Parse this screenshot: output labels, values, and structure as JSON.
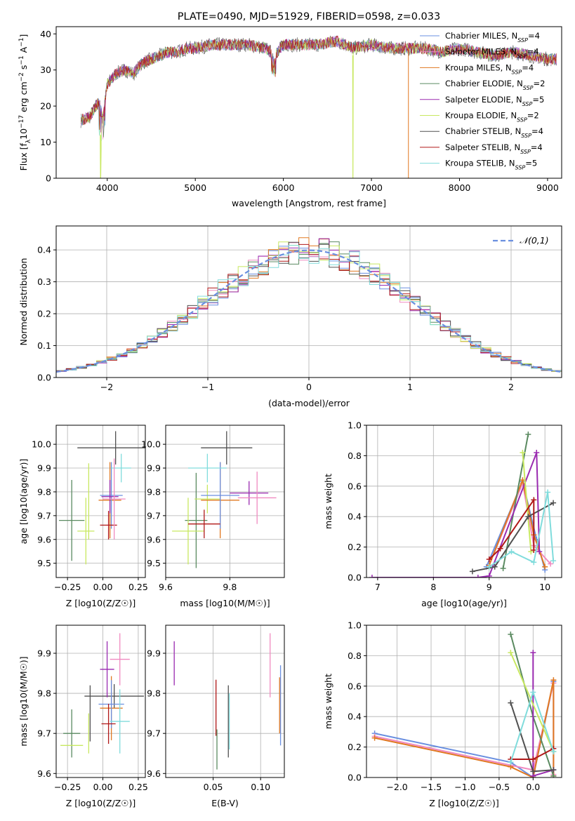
{
  "chart_data": [
    {
      "id": "spectrum",
      "type": "line",
      "title": "PLATE=0490, MJD=51929, FIBERID=0598, z=0.033",
      "xlabel": "wavelength [Angstrom, rest frame]",
      "ylabel": "Flux [f_λ 10^-17 erg cm^-2 s^-1 A^-1]",
      "xlim": [
        3420,
        9160
      ],
      "ylim": [
        0,
        42
      ],
      "xticks": [
        4000,
        5000,
        6000,
        7000,
        8000,
        9000
      ],
      "yticks": [
        0,
        10,
        20,
        30,
        40
      ],
      "grid": false,
      "legend_position": "top-right",
      "legend": [
        {
          "label": "Chabrier MILES, N_SSP=4",
          "color": "#6a8fe0"
        },
        {
          "label": "Salpeter MILES, N_SSP=4",
          "color": "#f08ac0"
        },
        {
          "label": "Kroupa MILES, N_SSP=4",
          "color": "#e07820"
        },
        {
          "label": "Chabrier ELODIE, N_SSP=2",
          "color": "#5a8a60"
        },
        {
          "label": "Salpeter ELODIE, N_SSP=5",
          "color": "#9a2ab0"
        },
        {
          "label": "Kroupa ELODIE, N_SSP=2",
          "color": "#c8e860"
        },
        {
          "label": "Chabrier STELIB, N_SSP=4",
          "color": "#505050"
        },
        {
          "label": "Salpeter STELIB, N_SSP=4",
          "color": "#b01818"
        },
        {
          "label": "Kroupa STELIB, N_SSP=5",
          "color": "#80dcdc"
        }
      ],
      "x": [
        3700,
        3800,
        3900,
        3950,
        4000,
        4100,
        4200,
        4300,
        4400,
        4500,
        4600,
        4700,
        4800,
        4900,
        5000,
        5200,
        5400,
        5600,
        5800,
        5900,
        6000,
        6200,
        6400,
        6600,
        6800,
        7000,
        7200,
        7400,
        7600,
        7800,
        8000,
        8200,
        8400,
        8600,
        8800,
        9000,
        9100
      ],
      "y": [
        16,
        17,
        21,
        17,
        26,
        29,
        30,
        29,
        32,
        33,
        34,
        35,
        35,
        36,
        36,
        37,
        37,
        37,
        36,
        34,
        37,
        37,
        37,
        38,
        36,
        37,
        36,
        36,
        36,
        35,
        36,
        35,
        34,
        35,
        34,
        33,
        33
      ],
      "dips": [
        {
          "x": 3925,
          "y": 0,
          "note": "Kroupa ELODIE"
        },
        {
          "x": 6790,
          "y": 0,
          "note": "Kroupa ELODIE"
        },
        {
          "x": 7420,
          "y": 0,
          "note": "Kroupa MILES"
        }
      ]
    },
    {
      "id": "residuals",
      "type": "step",
      "xlabel": "(data-model)/error",
      "ylabel": "Normed distribution",
      "xlim": [
        -2.5,
        2.5
      ],
      "ylim": [
        0,
        0.475
      ],
      "xticks": [
        -2,
        -1,
        0,
        1,
        2
      ],
      "yticks": [
        0.0,
        0.1,
        0.2,
        0.3,
        0.4
      ],
      "grid": true,
      "legend_position": "top-right",
      "legend": [
        {
          "label": "𝒩(0,1)",
          "color": "#6a8fe0",
          "style": "dashed"
        }
      ],
      "bin_width": 0.1
    },
    {
      "id": "age-vs-Z",
      "type": "errorbar",
      "xlabel": "Z [log10(Z/Z☉)]",
      "ylabel": "age [log10(age/yr)]",
      "xlim": [
        -0.33,
        0.3
      ],
      "ylim": [
        9.44,
        10.08
      ],
      "xticks": [
        -0.25,
        0.0,
        0.25
      ],
      "yticks": [
        9.5,
        9.6,
        9.7,
        9.8,
        9.9,
        10.0
      ],
      "grid": true,
      "points": [
        {
          "x": -0.1,
          "xerr": 0.0,
          "y": 9.76,
          "yerr": 0.16,
          "color": "#c8e860"
        },
        {
          "x": -0.22,
          "xerr": 0.09,
          "y": 9.68,
          "yerr": 0.17,
          "color": "#5a8a60"
        },
        {
          "x": -0.12,
          "xerr": 0.06,
          "y": 9.635,
          "yerr": 0.14,
          "color": "#c8e860"
        },
        {
          "x": 0.09,
          "xerr": 0.27,
          "y": 9.985,
          "yerr": 0.07,
          "color": "#505050"
        },
        {
          "x": 0.05,
          "xerr": 0.08,
          "y": 9.765,
          "yerr": 0.16,
          "color": "#e07820"
        },
        {
          "x": 0.06,
          "xerr": 0.08,
          "y": 9.785,
          "yerr": 0.14,
          "color": "#6a8fe0"
        },
        {
          "x": 0.05,
          "xerr": 0.06,
          "y": 9.78,
          "yerr": 0.07,
          "color": "#9a2ab0"
        },
        {
          "x": 0.04,
          "xerr": 0.06,
          "y": 9.66,
          "yerr": 0.06,
          "color": "#b01818"
        },
        {
          "x": 0.13,
          "xerr": 0.07,
          "y": 9.9,
          "yerr": 0.06,
          "color": "#80dcdc"
        },
        {
          "x": 0.08,
          "xerr": 0.08,
          "y": 9.77,
          "yerr": 0.17,
          "color": "#f08ac0"
        }
      ]
    },
    {
      "id": "age-vs-mass",
      "type": "errorbar",
      "xlabel": "mass [log10(M/M☉)]",
      "ylabel": "",
      "xlim": [
        9.6,
        9.97
      ],
      "ylim": [
        9.44,
        10.08
      ],
      "xticks": [
        9.6,
        9.8
      ],
      "yticks": [
        9.5,
        9.6,
        9.7,
        9.8,
        9.9,
        10.0
      ],
      "grid": true,
      "points": [
        {
          "x": 9.695,
          "xerr": 0.035,
          "y": 9.68,
          "yerr": 0.2,
          "color": "#5a8a60"
        },
        {
          "x": 9.67,
          "xerr": 0.05,
          "y": 9.635,
          "yerr": 0.14,
          "color": "#c8e860"
        },
        {
          "x": 9.73,
          "xerr": 0.04,
          "y": 9.77,
          "yerr": 0.06,
          "color": "#c8e860"
        },
        {
          "x": 9.79,
          "xerr": 0.08,
          "y": 9.985,
          "yerr": 0.07,
          "color": "#505050"
        },
        {
          "x": 9.77,
          "xerr": 0.06,
          "y": 9.765,
          "yerr": 0.16,
          "color": "#e07820"
        },
        {
          "x": 9.77,
          "xerr": 0.06,
          "y": 9.785,
          "yerr": 0.14,
          "color": "#6a8fe0"
        },
        {
          "x": 9.86,
          "xerr": 0.06,
          "y": 9.795,
          "yerr": 0.05,
          "color": "#9a2ab0"
        },
        {
          "x": 9.72,
          "xerr": 0.05,
          "y": 9.665,
          "yerr": 0.06,
          "color": "#b01818"
        },
        {
          "x": 9.73,
          "xerr": 0.06,
          "y": 9.9,
          "yerr": 0.06,
          "color": "#80dcdc"
        },
        {
          "x": 9.885,
          "xerr": 0.06,
          "y": 9.775,
          "yerr": 0.11,
          "color": "#f08ac0"
        }
      ]
    },
    {
      "id": "massweight-vs-age",
      "type": "line",
      "xlabel": "age [log10(age/yr)]",
      "ylabel": "mass weight",
      "xlim": [
        6.8,
        10.3
      ],
      "ylim": [
        0,
        1
      ],
      "xticks": [
        7,
        8,
        9,
        10
      ],
      "yticks": [
        0.0,
        0.2,
        0.4,
        0.6,
        0.8,
        1.0
      ],
      "grid": true,
      "series": [
        {
          "color": "#6a8fe0",
          "x": [
            8.95,
            9.6,
            9.85,
            10.0
          ],
          "y": [
            0.07,
            0.63,
            0.25,
            0.05
          ]
        },
        {
          "color": "#f08ac0",
          "x": [
            9.0,
            9.6,
            9.8,
            10.1
          ],
          "y": [
            0.08,
            0.62,
            0.21,
            0.09
          ]
        },
        {
          "color": "#e07820",
          "x": [
            9.0,
            9.6,
            9.8,
            10.0
          ],
          "y": [
            0.08,
            0.64,
            0.28,
            0.07
          ]
        },
        {
          "color": "#5a8a60",
          "x": [
            9.25,
            9.7
          ],
          "y": [
            0.06,
            0.94
          ]
        },
        {
          "color": "#9a2ab0",
          "x": [
            6.9,
            8.8,
            9.0,
            9.85,
            9.9
          ],
          "y": [
            0.0,
            0.0,
            0.01,
            0.82,
            0.17
          ]
        },
        {
          "color": "#c8e860",
          "x": [
            9.6,
            9.75
          ],
          "y": [
            0.82,
            0.17
          ]
        },
        {
          "color": "#505050",
          "x": [
            8.7,
            9.1,
            9.7,
            10.15
          ],
          "y": [
            0.04,
            0.07,
            0.4,
            0.49
          ]
        },
        {
          "color": "#b01818",
          "x": [
            9.0,
            9.2,
            9.8,
            9.8
          ],
          "y": [
            0.12,
            0.19,
            0.51,
            0.18
          ]
        },
        {
          "color": "#80dcdc",
          "x": [
            9.0,
            9.4,
            9.8,
            10.05,
            10.15
          ],
          "y": [
            0.07,
            0.17,
            0.1,
            0.56,
            0.11
          ]
        }
      ]
    },
    {
      "id": "mass-vs-Z",
      "type": "errorbar",
      "xlabel": "Z [log10(Z/Z☉)]",
      "ylabel": "mass [log10(M/M☉)]",
      "xlim": [
        -0.33,
        0.3
      ],
      "ylim": [
        9.59,
        9.97
      ],
      "xticks": [
        -0.25,
        0.0,
        0.25
      ],
      "yticks": [
        9.6,
        9.7,
        9.8,
        9.9
      ],
      "grid": true,
      "points": [
        {
          "x": -0.22,
          "xerr": 0.06,
          "y": 9.7,
          "yerr": 0.06,
          "color": "#5a8a60"
        },
        {
          "x": -0.1,
          "xerr": 0.0,
          "y": 9.7,
          "yerr": 0.05,
          "color": "#c8e860"
        },
        {
          "x": -0.22,
          "xerr": 0.08,
          "y": 9.67,
          "yerr": 0.0,
          "color": "#c8e860"
        },
        {
          "x": 0.08,
          "xerr": 0.21,
          "y": 9.793,
          "yerr": 0.03,
          "color": "#505050"
        },
        {
          "x": -0.09,
          "xerr": 0.0,
          "y": 9.75,
          "yerr": 0.07,
          "color": "#505050"
        },
        {
          "x": 0.06,
          "xerr": 0.08,
          "y": 9.763,
          "yerr": 0.08,
          "color": "#e07820"
        },
        {
          "x": 0.06,
          "xerr": 0.09,
          "y": 9.773,
          "yerr": 0.06,
          "color": "#6a8fe0"
        },
        {
          "x": 0.03,
          "xerr": 0.05,
          "y": 9.86,
          "yerr": 0.07,
          "color": "#9a2ab0"
        },
        {
          "x": 0.04,
          "xerr": 0.05,
          "y": 9.724,
          "yerr": 0.05,
          "color": "#b01818"
        },
        {
          "x": 0.12,
          "xerr": 0.07,
          "y": 9.73,
          "yerr": 0.08,
          "color": "#80dcdc"
        },
        {
          "x": 0.12,
          "xerr": 0.07,
          "y": 9.885,
          "yerr": 0.065,
          "color": "#f08ac0"
        }
      ]
    },
    {
      "id": "mass-vs-EBV",
      "type": "errorbar",
      "xlabel": "E(B-V)",
      "ylabel": "",
      "xlim": [
        0.0,
        0.125
      ],
      "ylim": [
        9.59,
        9.97
      ],
      "xticks": [
        0.05,
        0.1
      ],
      "yticks": [
        9.6,
        9.7,
        9.8,
        9.9
      ],
      "grid": true,
      "points": [
        {
          "x": 0.009,
          "xerr": 0.0,
          "y": 9.875,
          "yerr": 0.055,
          "color": "#9a2ab0"
        },
        {
          "x": 0.053,
          "xerr": 0.0,
          "y": 9.764,
          "yerr": 0.07,
          "color": "#b01818"
        },
        {
          "x": 0.054,
          "xerr": 0.0,
          "y": 9.66,
          "yerr": 0.05,
          "color": "#5a8a60"
        },
        {
          "x": 0.066,
          "xerr": 0.0,
          "y": 9.73,
          "yerr": 0.09,
          "color": "#505050"
        },
        {
          "x": 0.067,
          "xerr": 0.0,
          "y": 9.73,
          "yerr": 0.07,
          "color": "#80dcdc"
        },
        {
          "x": 0.11,
          "xerr": 0.0,
          "y": 9.87,
          "yerr": 0.08,
          "color": "#f08ac0"
        },
        {
          "x": 0.12,
          "xerr": 0.0,
          "y": 9.77,
          "yerr": 0.07,
          "color": "#e07820"
        },
        {
          "x": 0.121,
          "xerr": 0.0,
          "y": 9.77,
          "yerr": 0.1,
          "color": "#6a8fe0"
        }
      ]
    },
    {
      "id": "massweight-vs-Z",
      "type": "line",
      "xlabel": "Z [log10(Z/Z☉)]",
      "ylabel": "mass weight",
      "xlim": [
        -2.45,
        0.42
      ],
      "ylim": [
        0,
        1
      ],
      "xticks": [
        -2.0,
        -1.5,
        -1.0,
        -0.5,
        0.0
      ],
      "yticks": [
        0.0,
        0.2,
        0.4,
        0.6,
        0.8,
        1.0
      ],
      "grid": true,
      "series": [
        {
          "color": "#6a8fe0",
          "x": [
            -2.33,
            -0.33,
            0.0,
            0.3,
            0.3
          ],
          "y": [
            0.29,
            0.1,
            0.0,
            0.63,
            0.05
          ]
        },
        {
          "color": "#f08ac0",
          "x": [
            -2.33,
            -0.33,
            0.0,
            0.3,
            0.3
          ],
          "y": [
            0.27,
            0.08,
            0.05,
            0.62,
            0.02
          ]
        },
        {
          "color": "#e07820",
          "x": [
            -2.33,
            -0.33,
            0.0,
            0.3,
            0.3
          ],
          "y": [
            0.26,
            0.07,
            0.0,
            0.64,
            0.01
          ]
        },
        {
          "color": "#5a8a60",
          "x": [
            -0.33,
            0.0,
            0.3
          ],
          "y": [
            0.94,
            0.4,
            0.01
          ]
        },
        {
          "color": "#9a2ab0",
          "x": [
            0.0,
            0.0,
            0.3
          ],
          "y": [
            0.82,
            0.01,
            0.05
          ]
        },
        {
          "color": "#c8e860",
          "x": [
            -0.33,
            0.3
          ],
          "y": [
            0.82,
            0.17
          ]
        },
        {
          "color": "#505050",
          "x": [
            -0.33,
            0.0,
            0.3
          ],
          "y": [
            0.49,
            0.04,
            0.05
          ]
        },
        {
          "color": "#b01818",
          "x": [
            -0.33,
            0.0,
            0.3
          ],
          "y": [
            0.12,
            0.12,
            0.19
          ]
        },
        {
          "color": "#80dcdc",
          "x": [
            -0.33,
            0.0,
            0.3
          ],
          "y": [
            0.1,
            0.56,
            0.17
          ]
        }
      ]
    }
  ]
}
